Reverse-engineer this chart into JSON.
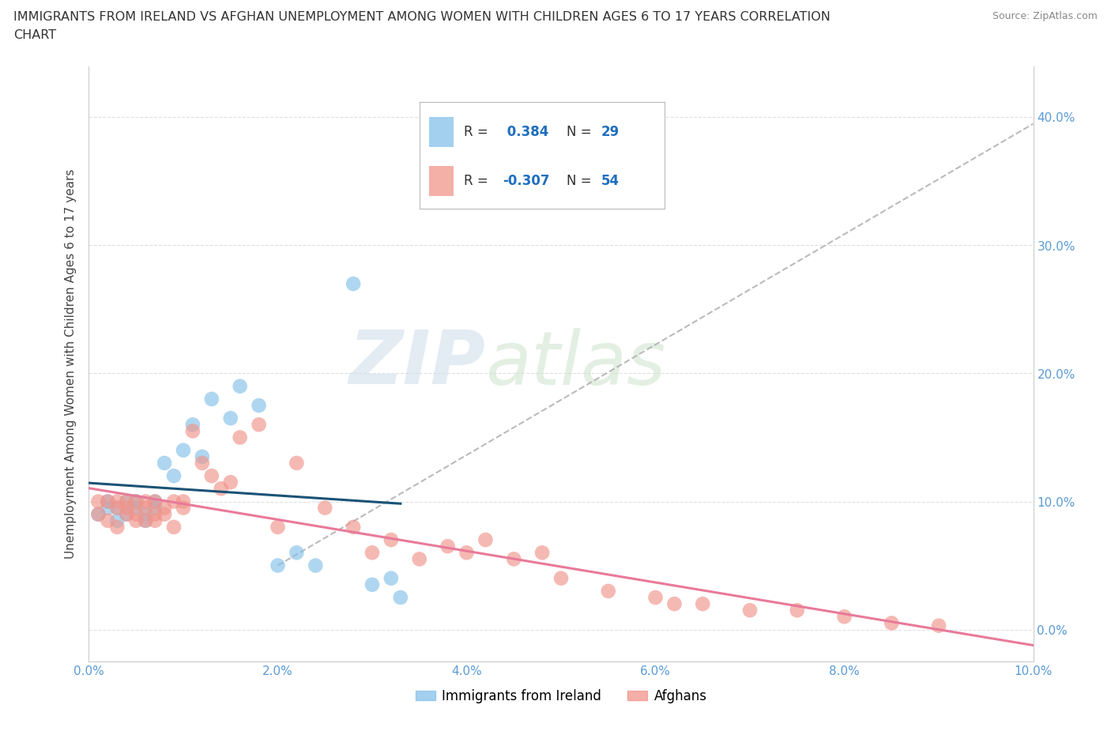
{
  "title_line1": "IMMIGRANTS FROM IRELAND VS AFGHAN UNEMPLOYMENT AMONG WOMEN WITH CHILDREN AGES 6 TO 17 YEARS CORRELATION",
  "title_line2": "CHART",
  "source": "Source: ZipAtlas.com",
  "ylabel": "Unemployment Among Women with Children Ages 6 to 17 years",
  "xlim": [
    0.0,
    0.1
  ],
  "ylim": [
    -0.025,
    0.44
  ],
  "xticks": [
    0.0,
    0.02,
    0.04,
    0.06,
    0.08,
    0.1
  ],
  "xtick_labels": [
    "0.0%",
    "2.0%",
    "4.0%",
    "6.0%",
    "8.0%",
    "10.0%"
  ],
  "yticks": [
    0.0,
    0.1,
    0.2,
    0.3,
    0.4
  ],
  "ytick_labels": [
    "0.0%",
    "10.0%",
    "20.0%",
    "30.0%",
    "40.0%"
  ],
  "ireland_color": "#85c1e9",
  "afghan_color": "#f1948a",
  "ireland_R": 0.384,
  "ireland_N": 29,
  "afghan_R": -0.307,
  "afghan_N": 54,
  "watermark_zip": "ZIP",
  "watermark_atlas": "atlas",
  "ireland_line_color": "#1a5276",
  "afghan_line_color": "#c0392b",
  "afghan_line_color2": "#e87a9a",
  "dashed_line_color": "#aaaaaa",
  "background_color": "#ffffff",
  "grid_color": "#dddddd",
  "tick_color": "#5b9bd5",
  "ireland_x": [
    0.001,
    0.002,
    0.002,
    0.003,
    0.003,
    0.004,
    0.004,
    0.005,
    0.005,
    0.006,
    0.006,
    0.007,
    0.007,
    0.008,
    0.009,
    0.01,
    0.011,
    0.012,
    0.013,
    0.015,
    0.016,
    0.018,
    0.02,
    0.022,
    0.024,
    0.028,
    0.03,
    0.032,
    0.033
  ],
  "ireland_y": [
    0.09,
    0.095,
    0.1,
    0.085,
    0.095,
    0.1,
    0.09,
    0.095,
    0.1,
    0.085,
    0.09,
    0.1,
    0.095,
    0.13,
    0.12,
    0.14,
    0.16,
    0.135,
    0.18,
    0.165,
    0.19,
    0.175,
    0.05,
    0.06,
    0.05,
    0.27,
    0.035,
    0.04,
    0.025
  ],
  "afghan_x": [
    0.001,
    0.001,
    0.002,
    0.002,
    0.003,
    0.003,
    0.003,
    0.004,
    0.004,
    0.004,
    0.005,
    0.005,
    0.005,
    0.006,
    0.006,
    0.006,
    0.007,
    0.007,
    0.007,
    0.008,
    0.008,
    0.009,
    0.009,
    0.01,
    0.01,
    0.011,
    0.012,
    0.013,
    0.014,
    0.015,
    0.016,
    0.018,
    0.02,
    0.022,
    0.025,
    0.028,
    0.03,
    0.032,
    0.035,
    0.038,
    0.04,
    0.042,
    0.045,
    0.048,
    0.05,
    0.055,
    0.06,
    0.062,
    0.065,
    0.07,
    0.075,
    0.08,
    0.085,
    0.09
  ],
  "afghan_y": [
    0.09,
    0.1,
    0.1,
    0.085,
    0.095,
    0.1,
    0.08,
    0.09,
    0.1,
    0.095,
    0.085,
    0.09,
    0.1,
    0.085,
    0.095,
    0.1,
    0.09,
    0.085,
    0.1,
    0.095,
    0.09,
    0.1,
    0.08,
    0.1,
    0.095,
    0.155,
    0.13,
    0.12,
    0.11,
    0.115,
    0.15,
    0.16,
    0.08,
    0.13,
    0.095,
    0.08,
    0.06,
    0.07,
    0.055,
    0.065,
    0.06,
    0.07,
    0.055,
    0.06,
    0.04,
    0.03,
    0.025,
    0.02,
    0.02,
    0.015,
    0.015,
    0.01,
    0.005,
    0.003
  ]
}
